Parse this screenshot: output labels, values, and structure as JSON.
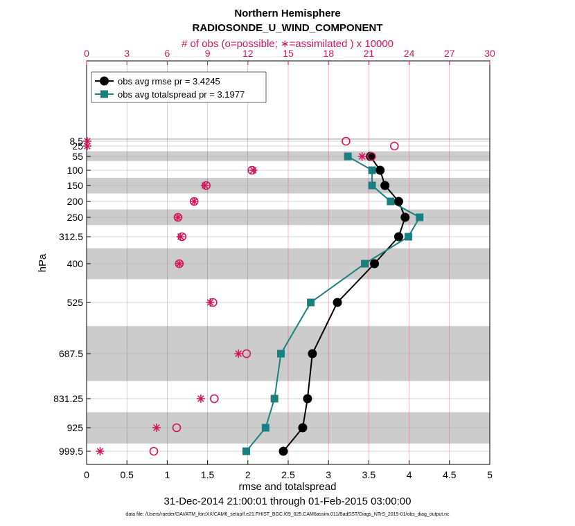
{
  "chart_data": {
    "type": "line",
    "title": "Northern Hemisphere",
    "subtitle": "RADIOSONDE_U_WIND_COMPONENT",
    "top_axis_label": "# of obs (o=possible; ∗=assimilated ) x 10000",
    "xlabel": "rmse and totalspread",
    "ylabel": "hPa",
    "date_range": "31-Dec-2014 21:00:01 through 01-Feb-2015 03:00:00",
    "data_file": "data file: /Users/raeder/DAI/ATM_forcXX/CAM6_setup/f.e21.FHIST_BGC.f09_025.CAM6assim.011/BadSST/Diags_NTrS_2015-01/obs_diag_output.nc",
    "xlim": [
      0,
      5
    ],
    "x_ticks": [
      "0",
      "0.5",
      "1",
      "1.5",
      "2",
      "2.5",
      "3",
      "3.5",
      "4",
      "4.5",
      "5"
    ],
    "top_xlim": [
      0,
      30
    ],
    "top_ticks": [
      "0",
      "3",
      "6",
      "9",
      "12",
      "15",
      "18",
      "21",
      "24",
      "27",
      "30"
    ],
    "levels": [
      8.5,
      25,
      55,
      100,
      150,
      200,
      250,
      312.5,
      400,
      525,
      687.5,
      831.25,
      925,
      999.5
    ],
    "level_labels": [
      "8.5",
      "25",
      "55",
      "100",
      "150",
      "200",
      "250",
      "312.5",
      "400",
      "525",
      "687.5",
      "831.25",
      "925",
      "999.5"
    ],
    "bands": [
      [
        0,
        0.001
      ],
      [
        40,
        70
      ],
      [
        125,
        175
      ],
      [
        225,
        275
      ],
      [
        350,
        450
      ],
      [
        600,
        775
      ],
      [
        875,
        975
      ]
    ],
    "series": [
      {
        "name": "obs avg rmse",
        "legend": "obs avg rmse pr = 3.4245",
        "color": "#000000",
        "marker": "circle",
        "levels": [
          55,
          100,
          150,
          200,
          250,
          312.5,
          400,
          525,
          687.5,
          831.25,
          925,
          999.5
        ],
        "values": [
          3.52,
          3.64,
          3.7,
          3.87,
          3.95,
          3.87,
          3.57,
          3.11,
          2.8,
          2.74,
          2.68,
          2.44
        ]
      },
      {
        "name": "obs avg totalspread",
        "legend": "obs avg totalspread pr = 3.1977",
        "color": "#1a7f7f",
        "marker": "square",
        "levels": [
          55,
          100,
          150,
          200,
          250,
          312.5,
          400,
          525,
          687.5,
          831.25,
          925,
          999.5
        ],
        "values": [
          3.24,
          3.54,
          3.54,
          3.77,
          4.13,
          3.99,
          3.45,
          2.78,
          2.41,
          2.33,
          2.22,
          1.98
        ]
      }
    ],
    "obs_possible": {
      "name": "obs possible",
      "color": "#d4145a",
      "marker": "circle-open",
      "levels": [
        8.5,
        25,
        55,
        100,
        150,
        200,
        250,
        312.5,
        400,
        525,
        687.5,
        831.25,
        925,
        999.5
      ],
      "values": [
        19.3,
        22.9,
        21.2,
        12.3,
        8.9,
        8.0,
        6.8,
        7.1,
        6.9,
        9.4,
        11.9,
        9.5,
        6.7,
        5.0
      ]
    },
    "obs_assimilated": {
      "name": "obs assimilated",
      "color": "#d4145a",
      "marker": "asterisk",
      "levels": [
        8.5,
        25,
        55,
        100,
        150,
        200,
        250,
        312.5,
        400,
        525,
        687.5,
        831.25,
        925,
        999.5
      ],
      "values": [
        0.05,
        0.05,
        20.5,
        12.4,
        8.8,
        8.0,
        6.8,
        7.0,
        6.9,
        9.2,
        11.3,
        8.5,
        5.2,
        1.0
      ]
    }
  }
}
